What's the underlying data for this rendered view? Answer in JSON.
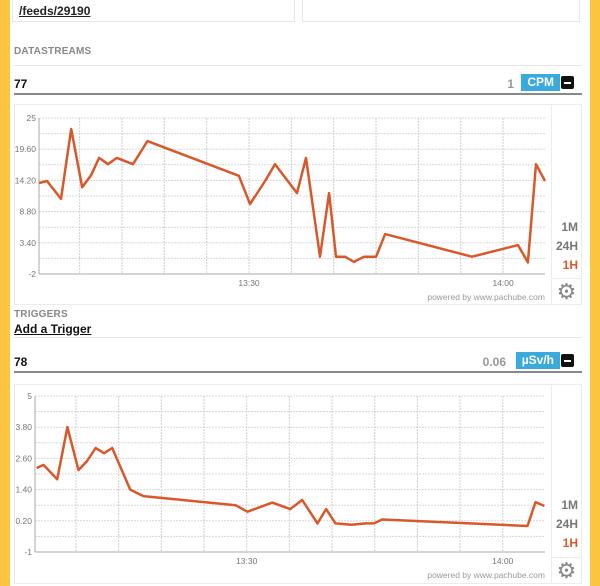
{
  "feed_link": "/feeds/29190",
  "sections": {
    "datastreams": "DATASTREAMS",
    "triggers": "TRIGGERS",
    "add_trigger": "Add a Trigger"
  },
  "ranges": [
    "1M",
    "24H",
    "1H"
  ],
  "active_range": "1H",
  "powered_by": "powered by www.pachube.com",
  "colors": {
    "accent": "#3aa9dc",
    "line": "#d9582b",
    "frame": "#fbc53f"
  },
  "icons": {
    "minimize": "minus-square-icon",
    "settings": "gear-icon"
  },
  "datastreams": [
    {
      "id": "77",
      "current_value": "1",
      "unit": "CPM"
    },
    {
      "id": "78",
      "current_value": "0.06",
      "unit": "µSv/h"
    }
  ],
  "chart_data": [
    {
      "type": "line",
      "xlim": [
        "13:05:12",
        "14:04:57"
      ],
      "ylim": [
        -2,
        25
      ],
      "yticks": [
        "25",
        "19.60",
        "14.20",
        "8.80",
        "3.40",
        "-2"
      ],
      "xticks": [
        "13:30",
        "14:00"
      ],
      "grid": true,
      "x": [
        "13:05:12",
        "13:06:09",
        "13:07:48",
        "13:09:00",
        "13:10:18",
        "13:11:21",
        "13:12:18",
        "13:13:21",
        "13:14:24",
        "13:16:18",
        "13:18:00",
        "13:28:48",
        "13:30:07",
        "13:31:54",
        "13:33:04",
        "13:35:40",
        "13:36:44",
        "13:38:23",
        "13:39:27",
        "13:40:16",
        "13:41:20",
        "13:42:24",
        "13:43:35",
        "13:45:00",
        "13:46:04",
        "13:56:20",
        "14:01:46",
        "14:02:56",
        "14:03:53",
        "14:04:57"
      ],
      "y": [
        13.75,
        14.1,
        11,
        23.1,
        13,
        15.1,
        18.1,
        17,
        18.1,
        17,
        21,
        15,
        10.1,
        14.1,
        17,
        12,
        18.1,
        1,
        12,
        1,
        1,
        0.1,
        1,
        1,
        4.9,
        1,
        3,
        0,
        17,
        14.1
      ]
    },
    {
      "type": "line",
      "xlim": [
        "13:05:12",
        "14:04:57"
      ],
      "ylim": [
        -1,
        5
      ],
      "yticks": [
        "5",
        "3.80",
        "2.60",
        "1.40",
        "0.20",
        "-1"
      ],
      "xticks": [
        "13:30",
        "14:00"
      ],
      "grid": true,
      "x": [
        "13:05:23",
        "13:06:12",
        "13:07:48",
        "13:09:00",
        "13:10:18",
        "13:11:18",
        "13:12:18",
        "13:13:18",
        "13:14:15",
        "13:16:21",
        "13:17:54",
        "13:28:42",
        "13:30:06",
        "13:33:00",
        "13:35:06",
        "13:36:30",
        "13:38:18",
        "13:39:18",
        "13:40:24",
        "13:42:15",
        "13:44:00",
        "13:44:56",
        "13:45:52",
        "13:56:08",
        "14:02:54",
        "14:03:50",
        "14:04:53"
      ],
      "y": [
        2.23,
        2.35,
        1.8,
        3.8,
        2.15,
        2.5,
        3.0,
        2.8,
        3.0,
        1.4,
        1.15,
        0.8,
        0.55,
        0.9,
        0.65,
        1.0,
        0.1,
        0.65,
        0.1,
        0.05,
        0.1,
        0.1,
        0.25,
        0.1,
        0.0,
        0.92,
        0.77
      ]
    }
  ]
}
